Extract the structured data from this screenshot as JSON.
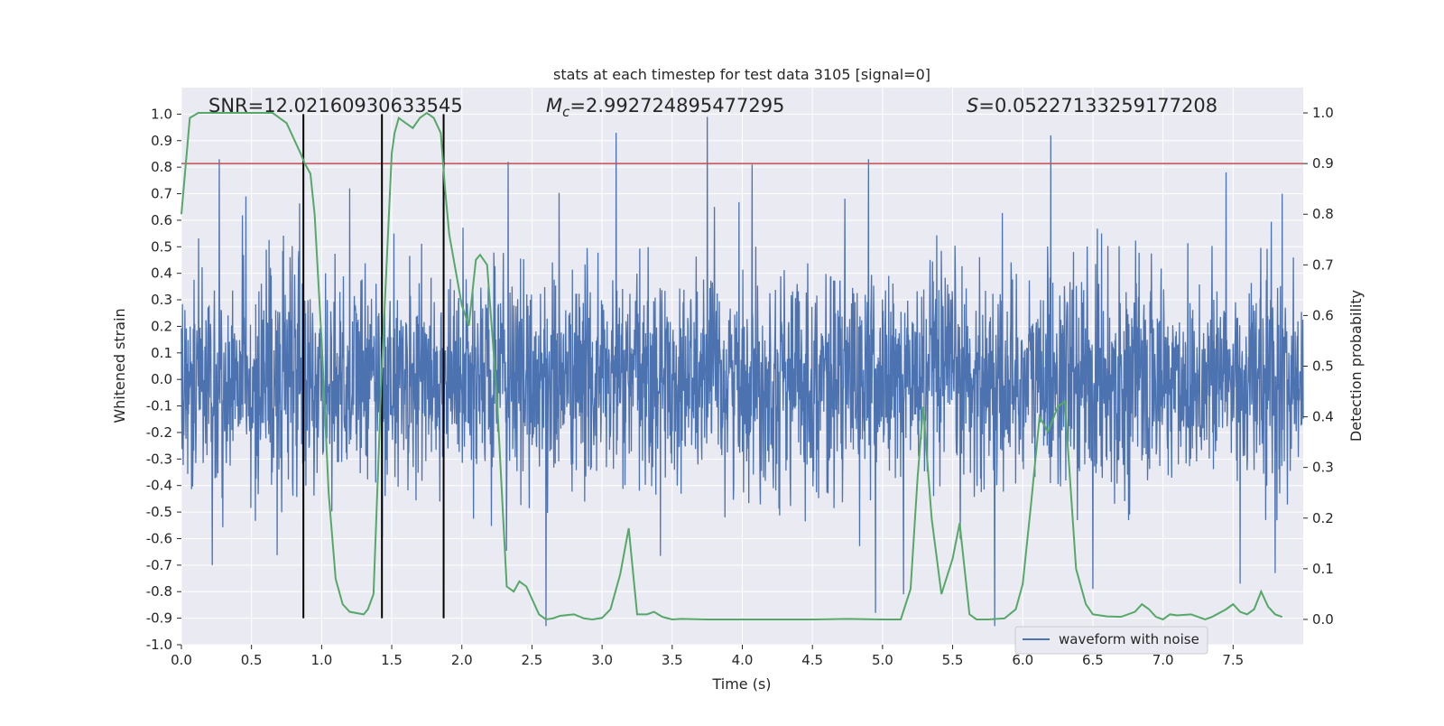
{
  "chart_data": {
    "type": "line",
    "title": "stats at each timestep for test data 3105 [signal=0]",
    "xlabel": "Time (s)",
    "ylabel_left": "Whitened strain",
    "ylabel_right": "Detection probability",
    "xlim": [
      0,
      8
    ],
    "ylim_left": [
      -1.0,
      1.1
    ],
    "ylim_right": [
      -0.05,
      1.05
    ],
    "x_ticks": [
      "0.0",
      "0.5",
      "1.0",
      "1.5",
      "2.0",
      "2.5",
      "3.0",
      "3.5",
      "4.0",
      "4.5",
      "5.0",
      "5.5",
      "6.0",
      "6.5",
      "7.0",
      "7.5"
    ],
    "y_ticks_left": [
      "1.0",
      "0.9",
      "0.8",
      "0.7",
      "0.6",
      "0.5",
      "0.4",
      "0.3",
      "0.2",
      "0.1",
      "0.0",
      "-0.1",
      "-0.2",
      "-0.3",
      "-0.4",
      "-0.5",
      "-0.6",
      "-0.7",
      "-0.8",
      "-0.9",
      "-1.0"
    ],
    "y_ticks_right": [
      "1.0",
      "0.9",
      "0.8",
      "0.7",
      "0.6",
      "0.5",
      "0.4",
      "0.3",
      "0.2",
      "0.1",
      "0.0"
    ],
    "grid": true,
    "legend": {
      "placement": "lower-right",
      "entries": [
        "waveform with noise"
      ]
    },
    "annotations": {
      "snr": "SNR=12.02160930633545",
      "mc_symbol": "M",
      "mc_sub": "c",
      "mc_value": "=2.992724895477295",
      "s_symbol": "S",
      "s_value": "=0.05227133259177208"
    },
    "threshold": {
      "axis": "right",
      "value": 0.9,
      "color": "#c44e52"
    },
    "vertical_lines": [
      0.87,
      1.43,
      1.87
    ],
    "waveform": {
      "name": "waveform with noise",
      "axis": "left",
      "color": "#4c72b0",
      "peaks": [
        {
          "x": 0.27,
          "y": 0.83
        },
        {
          "x": 0.46,
          "y": 0.69
        },
        {
          "x": 1.2,
          "y": 0.72
        },
        {
          "x": 2.33,
          "y": 0.82
        },
        {
          "x": 3.1,
          "y": 0.93
        },
        {
          "x": 3.75,
          "y": 0.99
        },
        {
          "x": 4.07,
          "y": 0.81
        },
        {
          "x": 4.9,
          "y": 0.83
        },
        {
          "x": 6.2,
          "y": 0.92
        },
        {
          "x": 7.45,
          "y": 0.78
        },
        {
          "x": 7.85,
          "y": 0.7
        }
      ],
      "troughs": [
        {
          "x": 0.87,
          "y": -0.76
        },
        {
          "x": 2.6,
          "y": -0.93
        },
        {
          "x": 4.95,
          "y": -0.88
        },
        {
          "x": 5.15,
          "y": -0.81
        },
        {
          "x": 5.8,
          "y": -0.93
        },
        {
          "x": 6.5,
          "y": -0.79
        },
        {
          "x": 7.55,
          "y": -0.77
        },
        {
          "x": 7.8,
          "y": -0.73
        }
      ]
    },
    "series": [
      {
        "axis": "right",
        "color": "#55a868",
        "x": [
          0.0,
          0.06,
          0.12,
          0.2,
          0.35,
          0.5,
          0.65,
          0.75,
          0.85,
          0.88,
          0.92,
          0.95,
          1.0,
          1.05,
          1.1,
          1.15,
          1.2,
          1.3,
          1.33,
          1.37,
          1.43,
          1.5,
          1.52,
          1.55,
          1.6,
          1.65,
          1.7,
          1.75,
          1.8,
          1.85,
          1.88,
          1.91,
          2.0,
          2.05,
          2.1,
          2.13,
          2.18,
          2.25,
          2.32,
          2.37,
          2.41,
          2.46,
          2.55,
          2.6,
          2.65,
          2.7,
          2.8,
          2.87,
          2.93,
          3.0,
          3.06,
          3.13,
          3.19,
          3.25,
          3.32,
          3.37,
          3.43,
          3.5,
          3.56,
          3.75,
          4.0,
          4.25,
          4.5,
          4.75,
          5.0,
          5.13,
          5.2,
          5.25,
          5.29,
          5.35,
          5.42,
          5.5,
          5.55,
          5.62,
          5.67,
          5.75,
          5.87,
          5.95,
          6.0,
          6.06,
          6.12,
          6.18,
          6.25,
          6.3,
          6.38,
          6.45,
          6.5,
          6.6,
          6.7,
          6.8,
          6.85,
          6.9,
          6.95,
          7.0,
          7.05,
          7.1,
          7.2,
          7.3,
          7.35,
          7.45,
          7.5,
          7.55,
          7.6,
          7.65,
          7.7,
          7.75,
          7.8,
          7.85
        ],
        "values": [
          0.8,
          0.99,
          1.0,
          1.0,
          1.0,
          1.0,
          1.0,
          0.98,
          0.92,
          0.9,
          0.88,
          0.8,
          0.55,
          0.25,
          0.08,
          0.03,
          0.015,
          0.01,
          0.02,
          0.05,
          0.5,
          0.92,
          0.96,
          0.99,
          0.98,
          0.97,
          0.99,
          1.0,
          0.99,
          0.96,
          0.85,
          0.76,
          0.62,
          0.58,
          0.71,
          0.72,
          0.7,
          0.44,
          0.065,
          0.055,
          0.075,
          0.065,
          0.01,
          0.0,
          0.002,
          0.007,
          0.01,
          0.002,
          0.0,
          0.003,
          0.02,
          0.09,
          0.18,
          0.01,
          0.01,
          0.015,
          0.005,
          0.0,
          0.001,
          0.0,
          0.0,
          0.0,
          0.0,
          0.001,
          0.0,
          0.0,
          0.06,
          0.28,
          0.42,
          0.2,
          0.05,
          0.12,
          0.19,
          0.01,
          0.0,
          0.0,
          0.002,
          0.02,
          0.07,
          0.23,
          0.4,
          0.37,
          0.42,
          0.43,
          0.1,
          0.03,
          0.01,
          0.006,
          0.005,
          0.015,
          0.03,
          0.02,
          0.005,
          0.0,
          0.01,
          0.008,
          0.01,
          0.0,
          0.005,
          0.02,
          0.03,
          0.015,
          0.01,
          0.02,
          0.055,
          0.025,
          0.01,
          0.005
        ]
      }
    ]
  }
}
